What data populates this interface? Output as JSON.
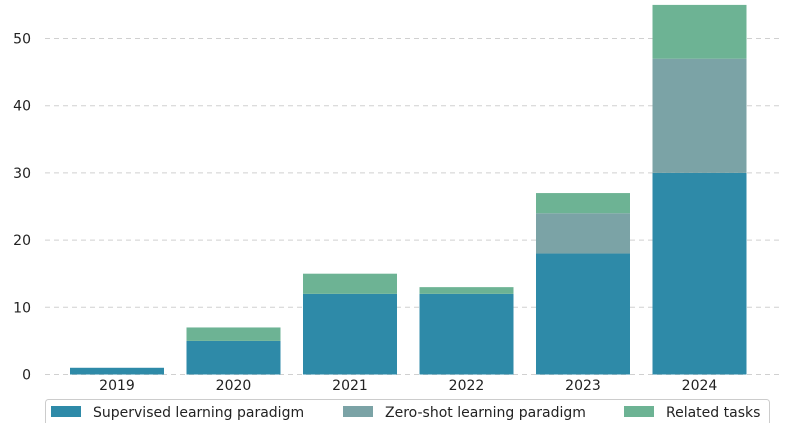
{
  "chart_data": {
    "type": "bar",
    "stacked": true,
    "categories": [
      "2019",
      "2020",
      "2021",
      "2022",
      "2023",
      "2024"
    ],
    "series": [
      {
        "name": "Supervised learning paradigm",
        "values": [
          1,
          5,
          12,
          12,
          18,
          30
        ],
        "color": "#2e8aa8"
      },
      {
        "name": "Zero-shot learning paradigm",
        "values": [
          0,
          0,
          0,
          0,
          6,
          17
        ],
        "color": "#7ba3a6"
      },
      {
        "name": "Related tasks",
        "values": [
          0,
          2,
          3,
          1,
          3,
          8
        ],
        "color": "#6db394"
      }
    ],
    "yticks": [
      0,
      10,
      20,
      30,
      40,
      50
    ],
    "ylim": [
      0,
      55
    ],
    "grid": true,
    "legend": "bottom",
    "title": "",
    "xlabel": "",
    "ylabel": ""
  }
}
